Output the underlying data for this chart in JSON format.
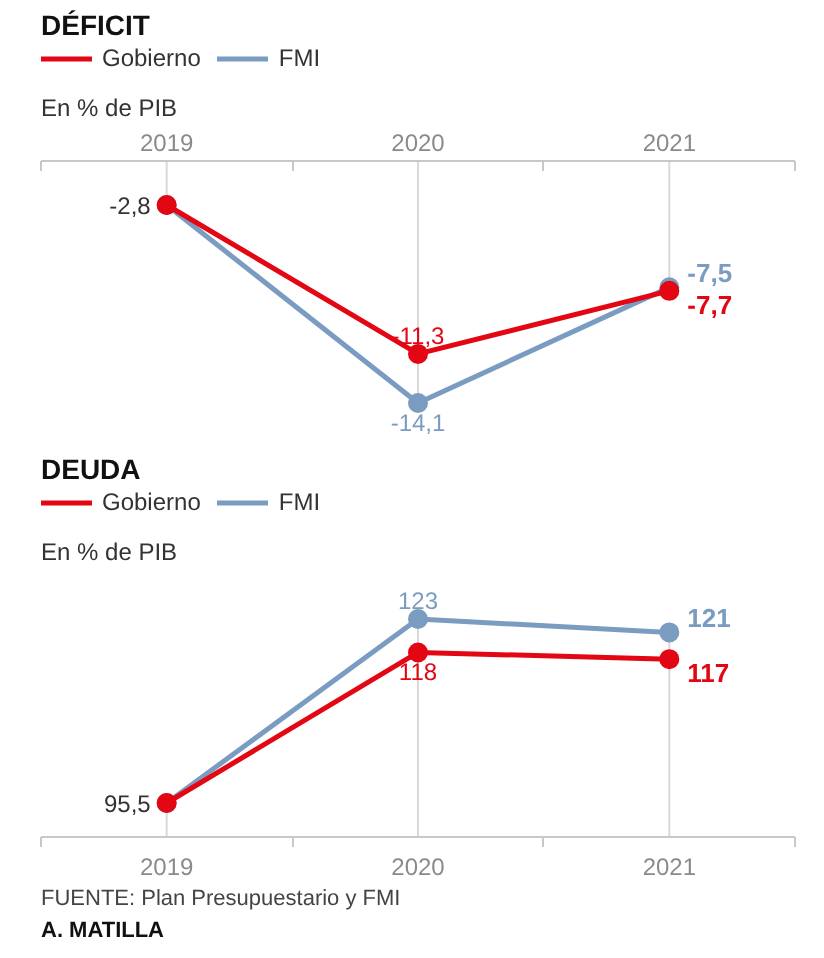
{
  "chart_data": [
    {
      "type": "line",
      "title": "DÉFICIT",
      "subtitle": "En % de PIB",
      "categories": [
        "2019",
        "2020",
        "2021"
      ],
      "legend": "top left",
      "marker": "circle",
      "grid": "x",
      "series": [
        {
          "name": "Gobierno",
          "color": "#e30613",
          "values": [
            -2.8,
            -11.3,
            -7.7
          ],
          "value_labels": [
            null,
            "-11,3",
            "-7,7"
          ]
        },
        {
          "name": "FMI",
          "color": "#7b9cc1",
          "values": [
            -2.8,
            -14.1,
            -7.5
          ],
          "value_labels": [
            null,
            "-14,1",
            "-7,5"
          ]
        }
      ],
      "annotations": [
        {
          "text": "-2,8",
          "x": "2019",
          "y": -2.8
        }
      ]
    },
    {
      "type": "line",
      "title": "DEUDA",
      "subtitle": "En % de PIB",
      "categories": [
        "2019",
        "2020",
        "2021"
      ],
      "legend": "top left",
      "marker": "circle",
      "grid": "x",
      "series": [
        {
          "name": "Gobierno",
          "color": "#e30613",
          "values": [
            95.5,
            118,
            117
          ],
          "value_labels": [
            null,
            "118",
            "117"
          ]
        },
        {
          "name": "FMI",
          "color": "#7b9cc1",
          "values": [
            95.5,
            123,
            121
          ],
          "value_labels": [
            null,
            "123",
            "121"
          ]
        }
      ],
      "annotations": [
        {
          "text": "95,5",
          "x": "2019",
          "y": 95.5
        },
        "FUENTE: Plan Presupuestario y FMI",
        "A. MATILLA"
      ]
    }
  ]
}
